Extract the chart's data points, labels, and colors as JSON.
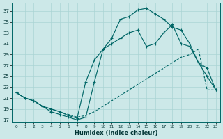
{
  "bg_color": "#cce8e8",
  "grid_color": "#aad4d4",
  "line_color": "#006666",
  "xlabel": "Humidex (Indice chaleur)",
  "xlim": [
    -0.5,
    23.5
  ],
  "ylim": [
    16.5,
    38.5
  ],
  "yticks": [
    17,
    19,
    21,
    23,
    25,
    27,
    29,
    31,
    33,
    35,
    37
  ],
  "xticks": [
    0,
    1,
    2,
    3,
    4,
    5,
    6,
    7,
    8,
    9,
    10,
    11,
    12,
    13,
    14,
    15,
    16,
    17,
    18,
    19,
    20,
    21,
    22,
    23
  ],
  "line_top_x": [
    0,
    1,
    2,
    3,
    4,
    5,
    6,
    7,
    8,
    9,
    10,
    11,
    12,
    13,
    14,
    15,
    16,
    17,
    18,
    19,
    20,
    21,
    22,
    23
  ],
  "line_top_y": [
    22,
    21,
    20.5,
    19.5,
    18.5,
    18,
    17.5,
    17.0,
    17.5,
    24.0,
    30.0,
    32.0,
    35.5,
    36.0,
    37.2,
    37.5,
    36.5,
    35.5,
    34.0,
    33.5,
    31.0,
    27.5,
    25.0,
    22.5
  ],
  "line_mid_x": [
    0,
    1,
    2,
    3,
    4,
    5,
    6,
    7,
    8,
    9,
    10,
    11,
    12,
    13,
    14,
    15,
    16,
    17,
    18,
    19,
    20,
    21,
    22,
    23
  ],
  "line_mid_y": [
    22,
    21,
    20.5,
    19.5,
    19,
    18.5,
    17.8,
    17.3,
    24.0,
    28.0,
    30.0,
    31.0,
    32.0,
    33.0,
    33.5,
    30.5,
    31.0,
    33.0,
    34.5,
    31.0,
    30.5,
    27.5,
    26.5,
    22.5
  ],
  "line_bot_x": [
    0,
    1,
    2,
    3,
    4,
    5,
    6,
    7,
    8,
    9,
    10,
    11,
    12,
    13,
    14,
    15,
    16,
    17,
    18,
    19,
    20,
    21,
    22,
    23
  ],
  "line_bot_y": [
    22,
    21,
    20.5,
    19.5,
    19.0,
    18.5,
    18.0,
    17.5,
    17.8,
    18.5,
    19.5,
    20.5,
    21.5,
    22.5,
    23.5,
    24.5,
    25.5,
    26.5,
    27.5,
    28.5,
    29.0,
    30.0,
    22.5,
    22.5
  ]
}
